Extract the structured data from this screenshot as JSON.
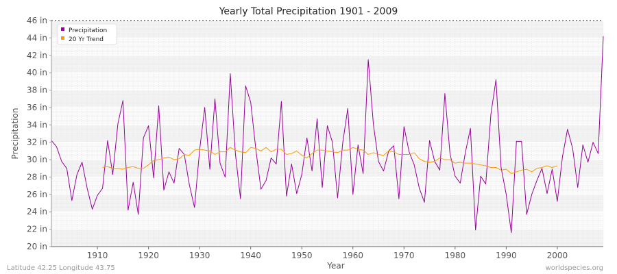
{
  "chart_data": {
    "type": "line",
    "title": "Yearly Total Precipitation 1901 - 2009",
    "xlabel": "Year",
    "ylabel": "Precipitation",
    "xlim": [
      1901,
      2009
    ],
    "ylim": [
      20,
      46
    ],
    "y_ticks": [
      20,
      22,
      24,
      26,
      28,
      30,
      32,
      34,
      36,
      38,
      40,
      42,
      44,
      46
    ],
    "y_tick_labels": [
      "20 in",
      "22 in",
      "24 in",
      "26 in",
      "28 in",
      "30 in",
      "32 in",
      "34 in",
      "36 in",
      "38 in",
      "40 in",
      "42 in",
      "44 in",
      "46 in"
    ],
    "x_ticks": [
      1910,
      1920,
      1930,
      1940,
      1950,
      1960,
      1970,
      1980,
      1990,
      2000
    ],
    "x_tick_labels": [
      "1910",
      "1920",
      "1930",
      "1940",
      "1950",
      "1960",
      "1970",
      "1980",
      "1990",
      "2000"
    ],
    "legend_position": "top-left",
    "series": [
      {
        "name": "Precipitation",
        "color": "#990099",
        "x_start": 1901,
        "values": [
          32.2,
          31.5,
          29.8,
          29.0,
          25.3,
          28.3,
          29.7,
          26.7,
          24.3,
          25.9,
          26.7,
          32.2,
          28.3,
          34.1,
          36.8,
          24.2,
          27.4,
          23.7,
          32.5,
          33.9,
          27.9,
          36.2,
          26.5,
          28.6,
          27.3,
          31.3,
          30.6,
          27.1,
          24.5,
          31.1,
          36.0,
          28.9,
          37.0,
          29.6,
          28.0,
          39.9,
          30.7,
          25.5,
          38.5,
          36.6,
          31.2,
          26.6,
          27.6,
          30.2,
          29.5,
          36.7,
          25.8,
          29.5,
          26.1,
          28.3,
          32.5,
          28.7,
          34.7,
          26.8,
          33.9,
          32.0,
          25.6,
          31.9,
          35.9,
          26.0,
          31.7,
          28.4,
          41.5,
          34.1,
          29.8,
          28.7,
          31.0,
          31.6,
          25.5,
          33.8,
          30.9,
          29.4,
          26.7,
          25.1,
          32.2,
          29.8,
          28.8,
          37.6,
          30.7,
          28.1,
          27.3,
          30.8,
          33.6,
          21.9,
          28.1,
          27.2,
          35.2,
          39.2,
          29.1,
          26.0,
          21.6,
          32.1,
          32.1,
          23.7,
          26.0,
          27.6,
          29.0,
          26.1,
          28.9,
          25.2,
          30.3,
          33.5,
          31.3,
          26.8,
          31.7,
          29.7,
          32.0,
          30.7,
          44.2
        ]
      },
      {
        "name": "20 Yr Trend",
        "color": "#ff9900",
        "x_start": 1911,
        "values": [
          29.1,
          29.2,
          29.0,
          29.0,
          28.9,
          29.1,
          29.2,
          29.0,
          29.0,
          29.4,
          29.9,
          30.0,
          30.2,
          30.3,
          30.0,
          30.1,
          30.6,
          30.5,
          31.1,
          31.2,
          31.1,
          31.0,
          30.6,
          30.9,
          30.9,
          31.4,
          31.1,
          30.9,
          30.8,
          31.4,
          31.3,
          31.0,
          31.4,
          30.9,
          31.2,
          31.2,
          30.6,
          30.7,
          31.0,
          30.5,
          30.2,
          30.7,
          31.1,
          31.1,
          31.0,
          30.9,
          30.8,
          31.1,
          31.1,
          31.4,
          31.2,
          31.1,
          30.6,
          30.8,
          30.6,
          30.5,
          31.0,
          30.9,
          30.6,
          30.6,
          30.6,
          30.8,
          30.1,
          29.8,
          29.7,
          29.8,
          30.2,
          30.0,
          30.0,
          29.6,
          29.7,
          29.6,
          29.6,
          29.5,
          29.4,
          29.3,
          29.1,
          29.1,
          28.8,
          28.9,
          28.4,
          28.6,
          28.8,
          28.9,
          28.6,
          29.0,
          29.1,
          29.3,
          29.1,
          29.3
        ]
      }
    ],
    "footer_left": "Latitude 42.25 Longitude 43.75",
    "footer_right": "worldspecies.org"
  }
}
